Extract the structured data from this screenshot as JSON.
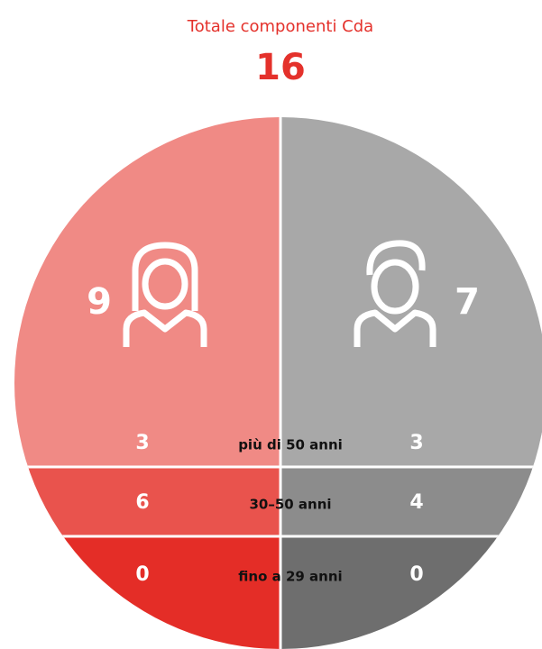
{
  "header": {
    "title": "Totale componenti Cda",
    "total": 16
  },
  "women": {
    "total": 9,
    "groups": [
      3,
      6,
      0
    ]
  },
  "men": {
    "total": 7,
    "groups": [
      3,
      4,
      0
    ]
  },
  "age_groups": [
    "più di 50 anni",
    "30–50 anni",
    "fino a 29 anni"
  ]
}
